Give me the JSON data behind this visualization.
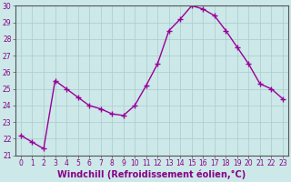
{
  "x": [
    0,
    1,
    2,
    3,
    4,
    5,
    6,
    7,
    8,
    9,
    10,
    11,
    12,
    13,
    14,
    15,
    16,
    17,
    18,
    19,
    20,
    21,
    22,
    23
  ],
  "y": [
    22.2,
    21.8,
    21.4,
    25.5,
    25.0,
    24.5,
    24.0,
    23.8,
    23.5,
    23.4,
    24.0,
    25.2,
    26.5,
    28.5,
    29.2,
    30.0,
    29.8,
    29.4,
    28.5,
    27.5,
    26.5,
    25.3,
    25.0,
    24.4
  ],
  "line_color": "#990099",
  "marker": "+",
  "marker_size": 4,
  "marker_linewidth": 1.0,
  "linewidth": 1.0,
  "background_color": "#cce8e8",
  "grid_color": "#aacccc",
  "axis_color": "#555555",
  "xlabel": "Windchill (Refroidissement éolien,°C)",
  "xlabel_color": "#880088",
  "ylim": [
    21,
    30
  ],
  "xlim_min": -0.5,
  "xlim_max": 23.5,
  "yticks": [
    21,
    22,
    23,
    24,
    25,
    26,
    27,
    28,
    29,
    30
  ],
  "xticks": [
    0,
    1,
    2,
    3,
    4,
    5,
    6,
    7,
    8,
    9,
    10,
    11,
    12,
    13,
    14,
    15,
    16,
    17,
    18,
    19,
    20,
    21,
    22,
    23
  ],
  "tick_color": "#880088",
  "tick_fontsize": 5.5,
  "xlabel_fontsize": 7.0
}
